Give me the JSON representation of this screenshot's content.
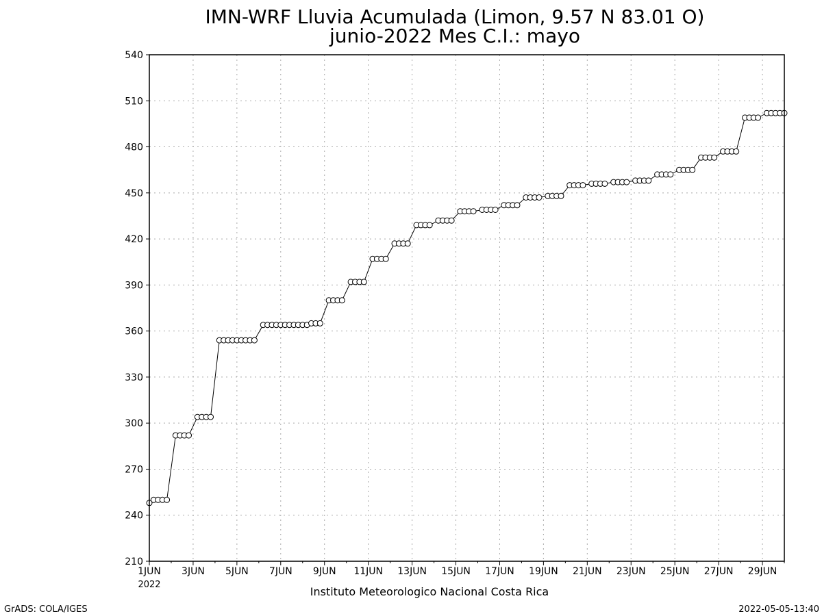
{
  "chart_data": {
    "type": "line",
    "title": "IMN-WRF  Lluvia Acumulada (Limon, 9.57  N 83.01  O)",
    "subtitle": "junio-2022 Mes C.I.: mayo",
    "xlabel": "",
    "ylabel": "",
    "ylim": [
      210,
      540
    ],
    "yticks": [
      210,
      240,
      270,
      300,
      330,
      360,
      390,
      420,
      450,
      480,
      510,
      540
    ],
    "x_range_days": [
      1,
      30
    ],
    "xticks": [
      {
        "day": 1,
        "label": "1JUN",
        "sublabel": "2022"
      },
      {
        "day": 3,
        "label": "3JUN"
      },
      {
        "day": 5,
        "label": "5JUN"
      },
      {
        "day": 7,
        "label": "7JUN"
      },
      {
        "day": 9,
        "label": "9JUN"
      },
      {
        "day": 11,
        "label": "11JUN"
      },
      {
        "day": 13,
        "label": "13JUN"
      },
      {
        "day": 15,
        "label": "15JUN"
      },
      {
        "day": 17,
        "label": "17JUN"
      },
      {
        "day": 19,
        "label": "19JUN"
      },
      {
        "day": 21,
        "label": "21JUN"
      },
      {
        "day": 23,
        "label": "23JUN"
      },
      {
        "day": 25,
        "label": "25JUN"
      },
      {
        "day": 27,
        "label": "27JUN"
      },
      {
        "day": 29,
        "label": "29JUN"
      }
    ],
    "grid": true,
    "marker": "open-circle",
    "series": [
      {
        "x": [
          1,
          1.2,
          1.4,
          1.6,
          1.8,
          2.2,
          2.4,
          2.6,
          2.8,
          3.2,
          3.4,
          3.6,
          3.8,
          4.2,
          4.4,
          4.6,
          4.8,
          5,
          5.2,
          5.4,
          5.6,
          5.8,
          6.2,
          6.4,
          6.6,
          6.8,
          7,
          7.2,
          7.4,
          7.6,
          7.8,
          8,
          8.2,
          8.4,
          8.6,
          8.8,
          9.2,
          9.4,
          9.6,
          9.8,
          10.2,
          10.4,
          10.6,
          10.8,
          11.2,
          11.4,
          11.6,
          11.8,
          12.2,
          12.4,
          12.6,
          12.8,
          13.2,
          13.4,
          13.6,
          13.8,
          14.2,
          14.4,
          14.6,
          14.8,
          15.2,
          15.4,
          15.6,
          15.8,
          16.2,
          16.4,
          16.6,
          16.8,
          17.2,
          17.4,
          17.6,
          17.8,
          18.2,
          18.4,
          18.6,
          18.8,
          19.2,
          19.4,
          19.6,
          19.8,
          20.2,
          20.4,
          20.6,
          20.8,
          21.2,
          21.4,
          21.6,
          21.8,
          22.2,
          22.4,
          22.6,
          22.8,
          23.2,
          23.4,
          23.6,
          23.8,
          24.2,
          24.4,
          24.6,
          24.8,
          25.2,
          25.4,
          25.6,
          25.8,
          26.2,
          26.4,
          26.6,
          26.8,
          27.2,
          27.4,
          27.6,
          27.8,
          28.2,
          28.4,
          28.6,
          28.8,
          29.2,
          29.4,
          29.6,
          29.8,
          30
        ],
        "y": [
          248,
          250,
          250,
          250,
          250,
          292,
          292,
          292,
          292,
          304,
          304,
          304,
          304,
          354,
          354,
          354,
          354,
          354,
          354,
          354,
          354,
          354,
          364,
          364,
          364,
          364,
          364,
          364,
          364,
          364,
          364,
          364,
          364,
          365,
          365,
          365,
          380,
          380,
          380,
          380,
          392,
          392,
          392,
          392,
          407,
          407,
          407,
          407,
          417,
          417,
          417,
          417,
          429,
          429,
          429,
          429,
          432,
          432,
          432,
          432,
          438,
          438,
          438,
          438,
          439,
          439,
          439,
          439,
          442,
          442,
          442,
          442,
          447,
          447,
          447,
          447,
          448,
          448,
          448,
          448,
          455,
          455,
          455,
          455,
          456,
          456,
          456,
          456,
          457,
          457,
          457,
          457,
          458,
          458,
          458,
          458,
          462,
          462,
          462,
          462,
          465,
          465,
          465,
          465,
          473,
          473,
          473,
          473,
          477,
          477,
          477,
          477,
          499,
          499,
          499,
          499,
          502,
          502,
          502,
          502,
          502
        ]
      }
    ]
  },
  "footer": {
    "credit_left": "GrADS: COLA/IGES",
    "center_label": "Instituto Meteorologico Nacional Costa Rica",
    "timestamp": "2022-05-05-13:40"
  }
}
